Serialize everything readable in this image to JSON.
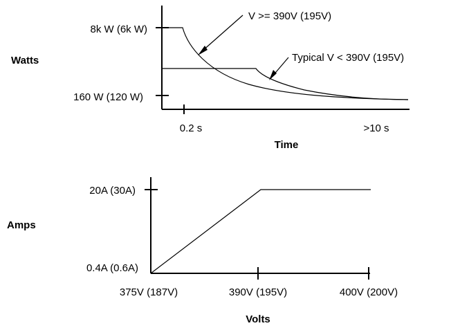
{
  "power_chart": {
    "ylabel": "Watts",
    "xlabel": "Time",
    "y_ticks": [
      "8k W (6k W)",
      "160 W (120 W)"
    ],
    "x_ticks": [
      "0.2 s",
      ">10 s"
    ],
    "annotations": {
      "high_voltage": "V >= 390V (195V)",
      "typical": "Typical V < 390V (195V)"
    }
  },
  "current_chart": {
    "ylabel": "Amps",
    "xlabel": "Volts",
    "y_ticks": [
      "20A (30A)",
      "0.4A (0.6A)"
    ],
    "x_ticks": [
      "375V (187V)",
      "390V (195V)",
      "400V (200V)"
    ]
  }
}
